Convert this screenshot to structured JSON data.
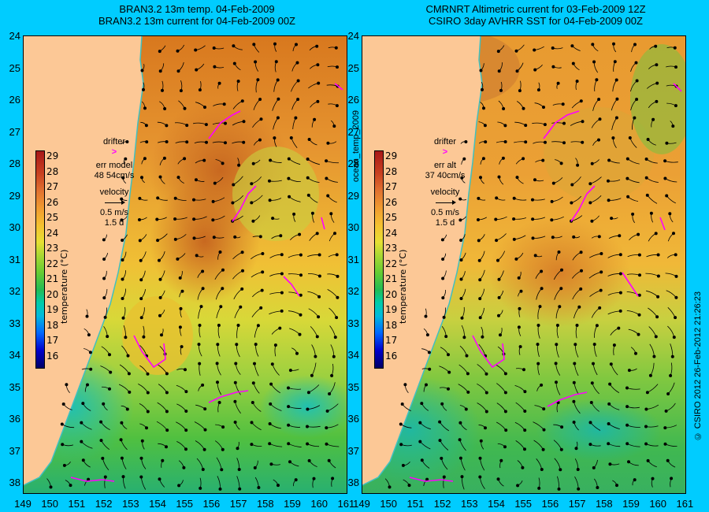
{
  "left_title": {
    "line1": "BRAN3.2 13m temp. 04-Feb-2009",
    "line2": "BRAN3.2 13m current for 04-Feb-2009 00Z"
  },
  "right_title": {
    "line1": "CMRNRT Altimetric current for 03-Feb-2009 12Z",
    "line2": "CSIRO 3day AVHRR SST for 04-Feb-2009 00Z"
  },
  "side_label": "ocean_temp_2009",
  "copyright": "© CSIRO 2012  26-Feb-2012 21:26:23",
  "y_axis_labels": [
    "24",
    "25",
    "26",
    "27",
    "28",
    "29",
    "30",
    "31",
    "32",
    "33",
    "34",
    "35",
    "36",
    "37",
    "38"
  ],
  "x_axis_labels": [
    "149",
    "150",
    "151",
    "152",
    "153",
    "154",
    "155",
    "156",
    "157",
    "158",
    "159",
    "160",
    "161"
  ],
  "colorbar": {
    "ticks": [
      "29",
      "28",
      "27",
      "26",
      "25",
      "24",
      "23",
      "22",
      "21",
      "20",
      "19",
      "18",
      "17",
      "16"
    ],
    "label": "temperature (°C)"
  },
  "left_legend": {
    "drifter": "drifter",
    "drifter_symbol": ">",
    "err_label": "err model",
    "err_value": "48 54cm/s",
    "velocity": "velocity",
    "scale_speed": "0.5 m/s",
    "scale_days": "1.5 d"
  },
  "right_legend": {
    "drifter": "drifter",
    "drifter_symbol": ">",
    "err_label": "err alt",
    "err_value": "37 40cm/s",
    "velocity": "velocity",
    "scale_speed": "0.5 m/s",
    "scale_days": "1.5 d"
  },
  "colors": {
    "background": "#00ccff",
    "land": "#fcc896",
    "drifter": "#ff00ff",
    "coastline": "#40c0c0"
  }
}
